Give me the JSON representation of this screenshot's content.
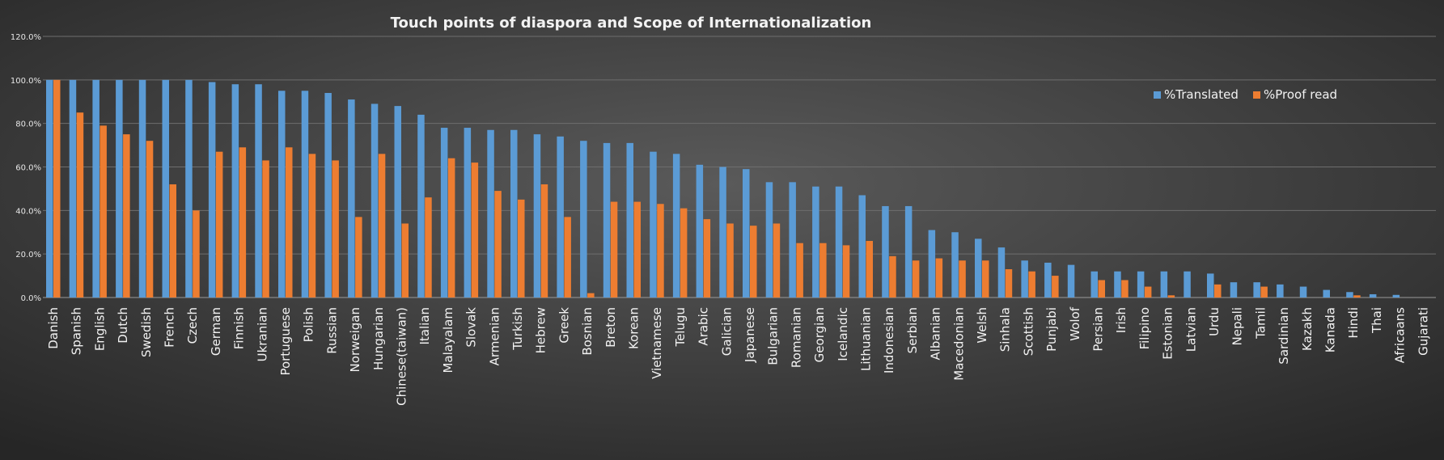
{
  "chart_data": {
    "type": "bar",
    "title": "Touch points of diaspora  and Scope of Internationalization",
    "xlabel": "",
    "ylabel": "",
    "ylim": [
      0,
      120
    ],
    "y_ticks": [
      0,
      20,
      40,
      60,
      80,
      100,
      120
    ],
    "y_tick_labels": [
      "0.0%",
      "20.0%",
      "40.0%",
      "60.0%",
      "80.0%",
      "100.0%",
      "120.0%"
    ],
    "grid": true,
    "legend_position": "top-right",
    "categories": [
      "Danish",
      "Spanish",
      "English",
      "Dutch",
      "Swedish",
      "French",
      "Czech",
      "German",
      "Finnish",
      "Ukranian",
      "Portuguese",
      "Polish",
      "Russian",
      "Norweigan",
      "Hungarian",
      "Chinese(taiwan)",
      "Italian",
      "Malayalam",
      "Slovak",
      "Armenian",
      "Turkish",
      "Hebrew",
      "Greek",
      "Bosnian",
      "Breton",
      "Korean",
      "Vietnamese",
      "Telugu",
      "Arabic",
      "Galician",
      "Japanese",
      "Bulgarian",
      "Romanian",
      "Georgian",
      "Icelandic",
      "Lithuanian",
      "Indonesian",
      "Serbian",
      "Albanian",
      "Macedonian",
      "Welsh",
      "Sinhala",
      "Scottish",
      "Punjabi",
      "Wolof",
      "Persian",
      "Irish",
      "Filipino",
      "Estonian",
      "Latvian",
      "Urdu",
      "Nepali",
      "Tamil",
      "Sardinian",
      "Kazakh",
      "Kanada",
      "Hindi",
      "Thai",
      "Africaans",
      "Gujarati"
    ],
    "series": [
      {
        "name": "%Translated",
        "color": "#5b9bd5",
        "values": [
          100,
          100,
          100,
          100,
          100,
          100,
          100,
          99,
          98,
          98,
          95,
          95,
          94,
          91,
          89,
          88,
          84,
          78,
          78,
          77,
          77,
          75,
          74,
          72,
          71,
          71,
          67,
          66,
          61,
          60,
          59,
          53,
          53,
          51,
          51,
          47,
          42,
          42,
          31,
          30,
          27,
          23,
          17,
          16,
          15,
          12,
          12,
          12,
          12,
          12,
          11,
          7,
          7,
          6,
          5,
          3.5,
          2.5,
          1.5,
          1.2,
          0
        ]
      },
      {
        "name": "%Proof read",
        "color": "#ed7d31",
        "values": [
          100,
          85,
          79,
          75,
          72,
          52,
          40,
          67,
          69,
          63,
          69,
          66,
          63,
          37,
          66,
          34,
          46,
          64,
          62,
          49,
          45,
          52,
          37,
          2,
          44,
          44,
          43,
          41,
          36,
          34,
          33,
          34,
          25,
          25,
          24,
          26,
          19,
          17,
          18,
          17,
          17,
          13,
          12,
          10,
          0,
          8,
          8,
          5,
          1,
          0,
          6,
          0,
          5,
          0,
          0,
          0,
          1,
          0,
          0,
          0
        ]
      }
    ]
  }
}
